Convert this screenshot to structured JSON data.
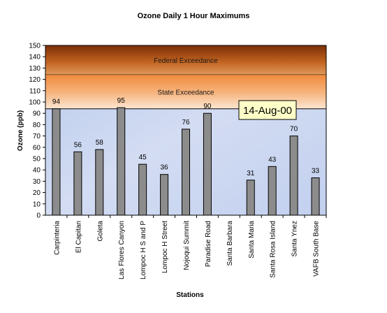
{
  "chart_data": {
    "type": "bar",
    "title": "Ozone Daily 1 Hour Maximums",
    "xlabel": "Stations",
    "ylabel": "Ozone (ppb)",
    "ylim": [
      0,
      150
    ],
    "yticks": [
      0,
      10,
      20,
      30,
      40,
      50,
      60,
      70,
      80,
      90,
      100,
      110,
      120,
      130,
      140,
      150
    ],
    "categories": [
      "Carpinteria",
      "El Capitan",
      "Goleta",
      "Las Flores Canyon",
      "Lompoc H S and P",
      "Lompoc H Street",
      "Nojoqui Summit",
      "Paradise Road",
      "Santa Barbara",
      "Santa Maria",
      "Santa Rosa Island",
      "Santa Ynez",
      "VAFB South Base"
    ],
    "values": [
      94,
      56,
      58,
      95,
      45,
      36,
      76,
      90,
      null,
      31,
      43,
      70,
      33
    ],
    "data_labels": [
      "94",
      "56",
      "58",
      "95",
      "45",
      "36",
      "76",
      "90",
      "",
      "31",
      "43",
      "70",
      "33"
    ],
    "bands": [
      {
        "label": "Federal Exceedance",
        "from": 124,
        "to": 150,
        "color": "#b85a1e"
      },
      {
        "label": "State Exceedance",
        "from": 94,
        "to": 124,
        "color": "#f2b47a"
      }
    ],
    "date_label": "14-Aug-00",
    "bar_color": "#8c8c8c",
    "plot_background": "#c6d4ee",
    "grid": false,
    "legend": "none"
  }
}
